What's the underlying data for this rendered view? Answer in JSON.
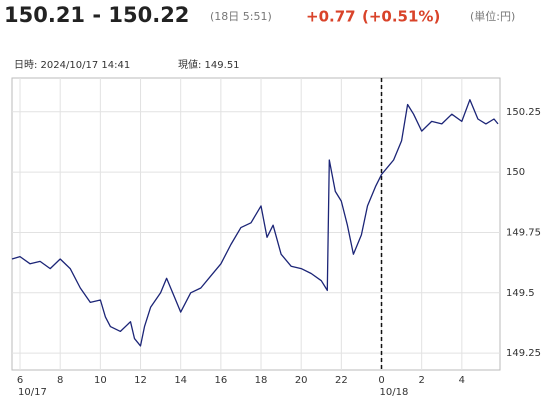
{
  "header": {
    "title": "150.21 - 150.22",
    "time": "(18日 5:51)",
    "change": "+0.77",
    "change_pct": "(+0.51%)",
    "unit": "(単位:円)"
  },
  "info": {
    "datetime": "日時: 2024/10/17 14:41",
    "current": "現値: 149.51"
  },
  "chart_data": {
    "type": "line",
    "x": [
      5.6,
      6,
      6.5,
      7,
      7.5,
      8,
      8.5,
      9,
      9.5,
      10,
      10.25,
      10.5,
      11,
      11.5,
      11.7,
      12,
      12.2,
      12.5,
      13,
      13.3,
      13.7,
      14,
      14.5,
      15,
      15.5,
      16,
      16.5,
      17,
      17.5,
      18,
      18.3,
      18.6,
      19,
      19.5,
      20,
      20.5,
      21,
      21.3,
      21.4,
      21.7,
      22,
      22.3,
      22.6,
      23,
      23.3,
      23.7,
      24,
      24.3,
      24.6,
      25,
      25.3,
      25.6,
      26,
      26.5,
      27,
      27.5,
      28,
      28.4,
      28.8,
      29.2,
      29.6,
      29.8
    ],
    "series": [
      {
        "color": "#1c2577",
        "values": [
          149.64,
          149.65,
          149.62,
          149.63,
          149.6,
          149.64,
          149.6,
          149.52,
          149.46,
          149.47,
          149.4,
          149.36,
          149.34,
          149.38,
          149.31,
          149.28,
          149.36,
          149.44,
          149.5,
          149.56,
          149.48,
          149.42,
          149.5,
          149.52,
          149.57,
          149.62,
          149.7,
          149.77,
          149.79,
          149.86,
          149.73,
          149.78,
          149.66,
          149.61,
          149.6,
          149.58,
          149.55,
          149.51,
          150.05,
          149.92,
          149.88,
          149.78,
          149.66,
          149.74,
          149.86,
          149.94,
          149.99,
          150.02,
          150.05,
          150.13,
          150.28,
          150.24,
          150.17,
          150.21,
          150.2,
          150.24,
          150.21,
          150.3,
          150.22,
          150.2,
          150.22,
          150.2
        ]
      }
    ],
    "xlim": [
      5.6,
      29.9
    ],
    "xticks": [
      6,
      8,
      10,
      12,
      14,
      16,
      18,
      20,
      22,
      {
        "value": 24,
        "label": "0"
      },
      {
        "value": 26,
        "label": "2"
      },
      {
        "value": 28,
        "label": "4"
      }
    ],
    "x_date_labels": [
      {
        "value": 6,
        "label": "10/17"
      },
      {
        "value": 24,
        "label": "10/18"
      }
    ],
    "vline_x": 24,
    "ylim": [
      149.18,
      150.39
    ],
    "yticks": [
      149.25,
      149.5,
      149.75,
      150,
      150.25
    ],
    "grid": true
  }
}
